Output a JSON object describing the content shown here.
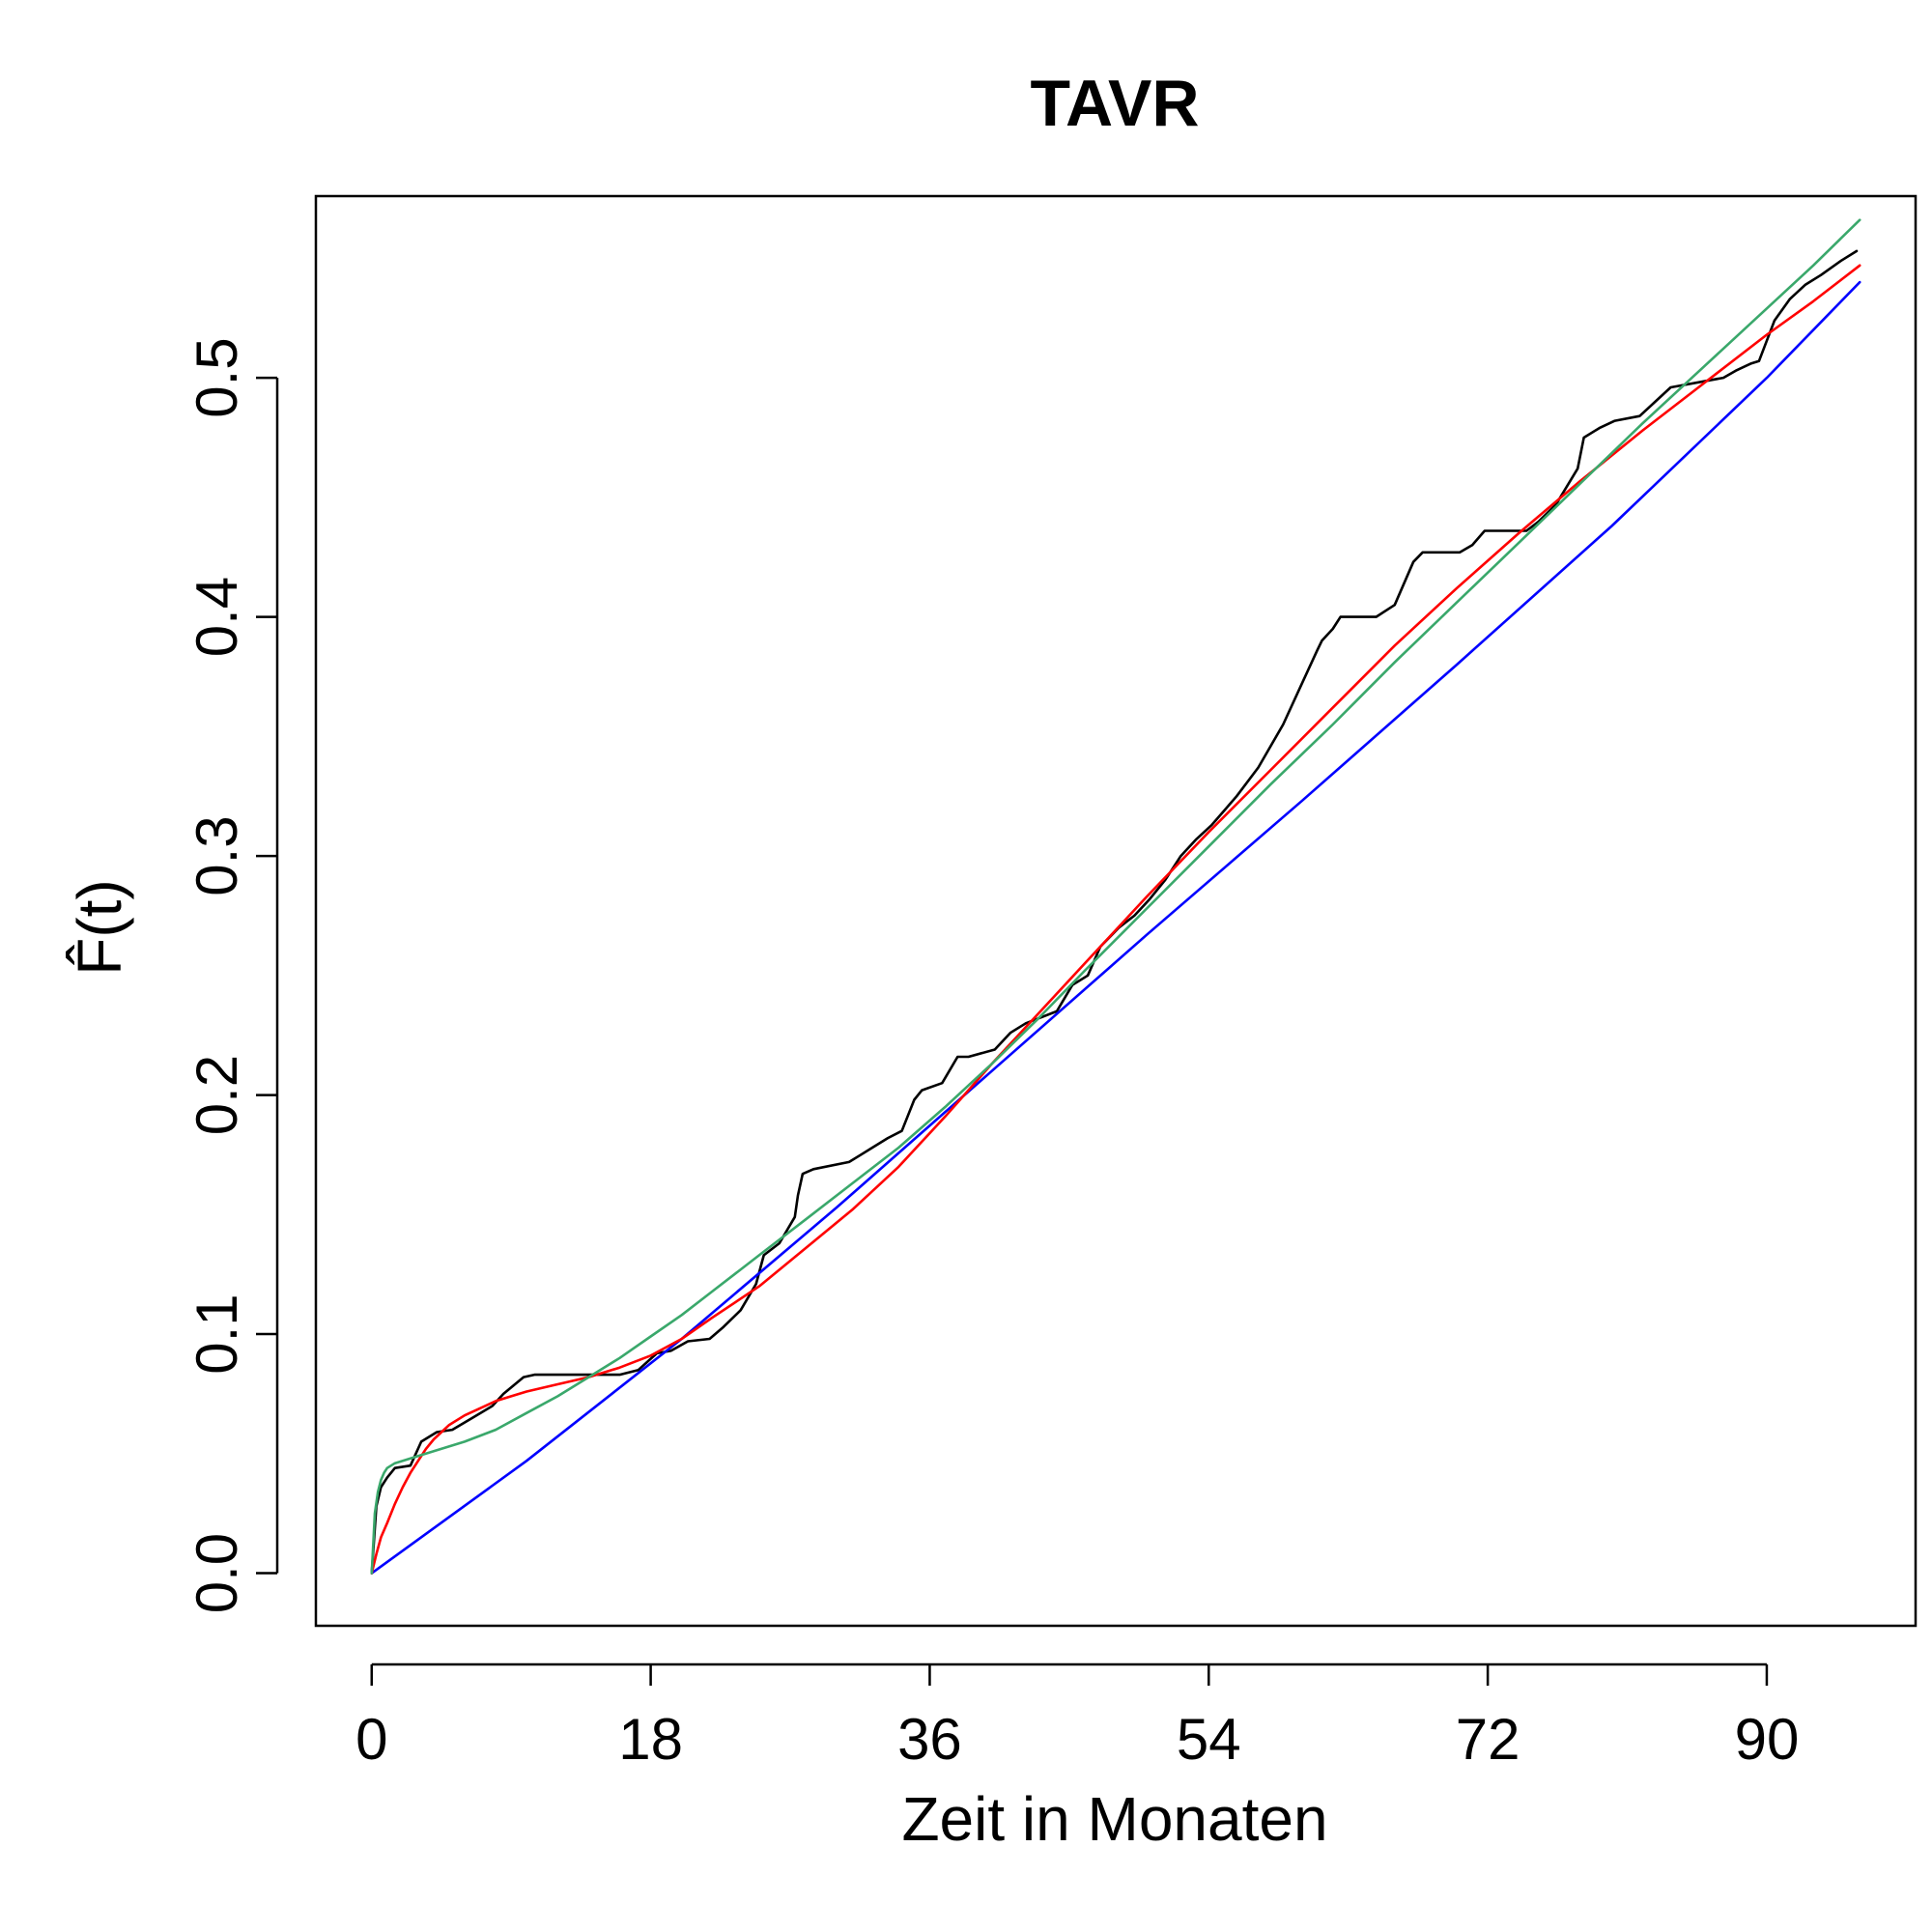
{
  "chart_data": {
    "type": "line",
    "title": "TAVR",
    "xlabel": "Zeit in Monaten",
    "ylabel": "F̂(t)",
    "xlim": [
      -3.6,
      99.6
    ],
    "ylim": [
      -0.022,
      0.576
    ],
    "x_ticks": [
      0,
      18,
      36,
      54,
      72,
      90
    ],
    "y_ticks": [
      0.0,
      0.1,
      0.2,
      0.3,
      0.4,
      0.5
    ],
    "x_tick_labels": [
      "0",
      "18",
      "36",
      "54",
      "72",
      "90"
    ],
    "y_tick_labels": [
      "0.0",
      "0.1",
      "0.2",
      "0.3",
      "0.4",
      "0.5"
    ],
    "grid": false,
    "legend": "none",
    "series": [
      {
        "color": "#000000",
        "kind": "empirical",
        "x": [
          0,
          0.3,
          0.6,
          1.0,
          1.5,
          2.5,
          3.2,
          4.2,
          5.2,
          6.5,
          7.8,
          8.5,
          9.8,
          10.5,
          11.5,
          13.5,
          16.0,
          17.2,
          18.4,
          19.3,
          20.4,
          21.8,
          22.7,
          23.8,
          24.8,
          25.3,
          26.3,
          27.3,
          27.5,
          27.8,
          28.5,
          30.8,
          32.3,
          33.3,
          34.2,
          35.0,
          35.5,
          36.8,
          37.8,
          38.5,
          40.2,
          41.2,
          42.2,
          44.2,
          45.2,
          46.2,
          47.0,
          48.2,
          49.2,
          50.2,
          51.2,
          52.2,
          53.2,
          54.2,
          55.8,
          57.2,
          58.8,
          60.0,
          61.0,
          61.3,
          62.0,
          62.5,
          63.5,
          64.8,
          66.0,
          67.2,
          67.8,
          68.5,
          70.2,
          71.0,
          71.8,
          73.2,
          74.5,
          75.3,
          76.4,
          77.8,
          78.2,
          79.2,
          80.2,
          81.8,
          83.8,
          87.2,
          88.0,
          89.0,
          89.5,
          90.5,
          91.5,
          92.5,
          93.5,
          94.8,
          95.8
        ],
        "y": [
          0.0,
          0.028,
          0.036,
          0.04,
          0.044,
          0.045,
          0.055,
          0.059,
          0.06,
          0.065,
          0.07,
          0.075,
          0.082,
          0.083,
          0.083,
          0.083,
          0.083,
          0.085,
          0.092,
          0.093,
          0.097,
          0.098,
          0.103,
          0.11,
          0.121,
          0.133,
          0.138,
          0.149,
          0.158,
          0.167,
          0.169,
          0.172,
          0.178,
          0.182,
          0.185,
          0.198,
          0.202,
          0.205,
          0.216,
          0.216,
          0.219,
          0.226,
          0.23,
          0.235,
          0.246,
          0.25,
          0.262,
          0.27,
          0.275,
          0.282,
          0.29,
          0.3,
          0.307,
          0.313,
          0.325,
          0.337,
          0.355,
          0.372,
          0.386,
          0.39,
          0.395,
          0.4,
          0.4,
          0.4,
          0.405,
          0.423,
          0.427,
          0.427,
          0.427,
          0.43,
          0.436,
          0.436,
          0.436,
          0.44,
          0.447,
          0.462,
          0.475,
          0.479,
          0.482,
          0.484,
          0.496,
          0.5,
          0.503,
          0.506,
          0.507,
          0.524,
          0.533,
          0.539,
          0.543,
          0.549,
          0.553
        ]
      },
      {
        "color": "#0000ff",
        "kind": "fitted",
        "x": [
          0,
          10,
          20,
          30,
          40,
          50,
          60,
          70,
          80,
          90,
          96
        ],
        "y": [
          0.0,
          0.047,
          0.098,
          0.153,
          0.21,
          0.267,
          0.323,
          0.38,
          0.438,
          0.5,
          0.54
        ]
      },
      {
        "color": "#ff0000",
        "kind": "fitted",
        "x": [
          0,
          0.3,
          0.6,
          1,
          1.5,
          2,
          2.5,
          3,
          3.5,
          4,
          5,
          6,
          7,
          8,
          9,
          10,
          12,
          14,
          16,
          18,
          20,
          22,
          25,
          28,
          31,
          34,
          37,
          40,
          43,
          46,
          50,
          54,
          58,
          62,
          66,
          70,
          74,
          78,
          82,
          86,
          90,
          93,
          96
        ],
        "y": [
          0.0,
          0.008,
          0.015,
          0.021,
          0.029,
          0.036,
          0.042,
          0.047,
          0.052,
          0.056,
          0.062,
          0.066,
          0.069,
          0.072,
          0.074,
          0.076,
          0.079,
          0.082,
          0.086,
          0.091,
          0.098,
          0.107,
          0.12,
          0.136,
          0.152,
          0.17,
          0.191,
          0.213,
          0.234,
          0.255,
          0.283,
          0.31,
          0.336,
          0.362,
          0.388,
          0.412,
          0.435,
          0.457,
          0.478,
          0.498,
          0.518,
          0.532,
          0.547
        ]
      },
      {
        "color": "#3aa86b",
        "kind": "fitted",
        "x": [
          0,
          0.2,
          0.4,
          0.6,
          0.8,
          1.0,
          1.5,
          2,
          3,
          4,
          6,
          8,
          10,
          12,
          14,
          16,
          18,
          20,
          22,
          25,
          28,
          31,
          34,
          37,
          40,
          43,
          46,
          50,
          54,
          58,
          62,
          66,
          70,
          74,
          78,
          82,
          86,
          90,
          93,
          96
        ],
        "y": [
          0.0,
          0.025,
          0.034,
          0.039,
          0.042,
          0.044,
          0.046,
          0.047,
          0.049,
          0.051,
          0.055,
          0.06,
          0.067,
          0.074,
          0.082,
          0.09,
          0.099,
          0.108,
          0.118,
          0.133,
          0.148,
          0.163,
          0.178,
          0.195,
          0.213,
          0.232,
          0.252,
          0.278,
          0.304,
          0.33,
          0.355,
          0.381,
          0.406,
          0.431,
          0.456,
          0.481,
          0.505,
          0.529,
          0.547,
          0.566
        ]
      }
    ]
  }
}
